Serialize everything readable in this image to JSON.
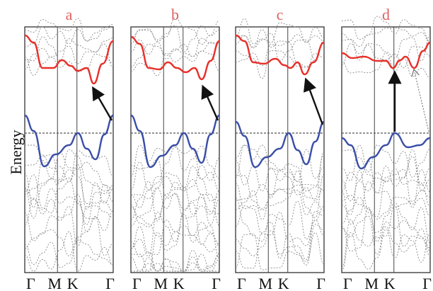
{
  "figure": {
    "y_axis_label": "Energy",
    "title_color": "#e06060",
    "conduction_color": "#e8302a",
    "valence_color": "#3a4ea8",
    "background_band_color": "#8a8a8a",
    "fermi_line_color": "#555555",
    "arrow_color": "#111111",
    "panels": [
      {
        "label": "a",
        "k_labels": [
          "Γ",
          "M",
          "K",
          "Γ"
        ],
        "transition": "indirect"
      },
      {
        "label": "b",
        "k_labels": [
          "Γ",
          "M",
          "K",
          "Γ"
        ],
        "transition": "indirect"
      },
      {
        "label": "c",
        "k_labels": [
          "Γ",
          "M",
          "K",
          "Γ"
        ],
        "transition": "indirect"
      },
      {
        "label": "d",
        "k_labels": [
          "Γ",
          "M",
          "K",
          "Γ"
        ],
        "transition": "direct"
      }
    ]
  }
}
